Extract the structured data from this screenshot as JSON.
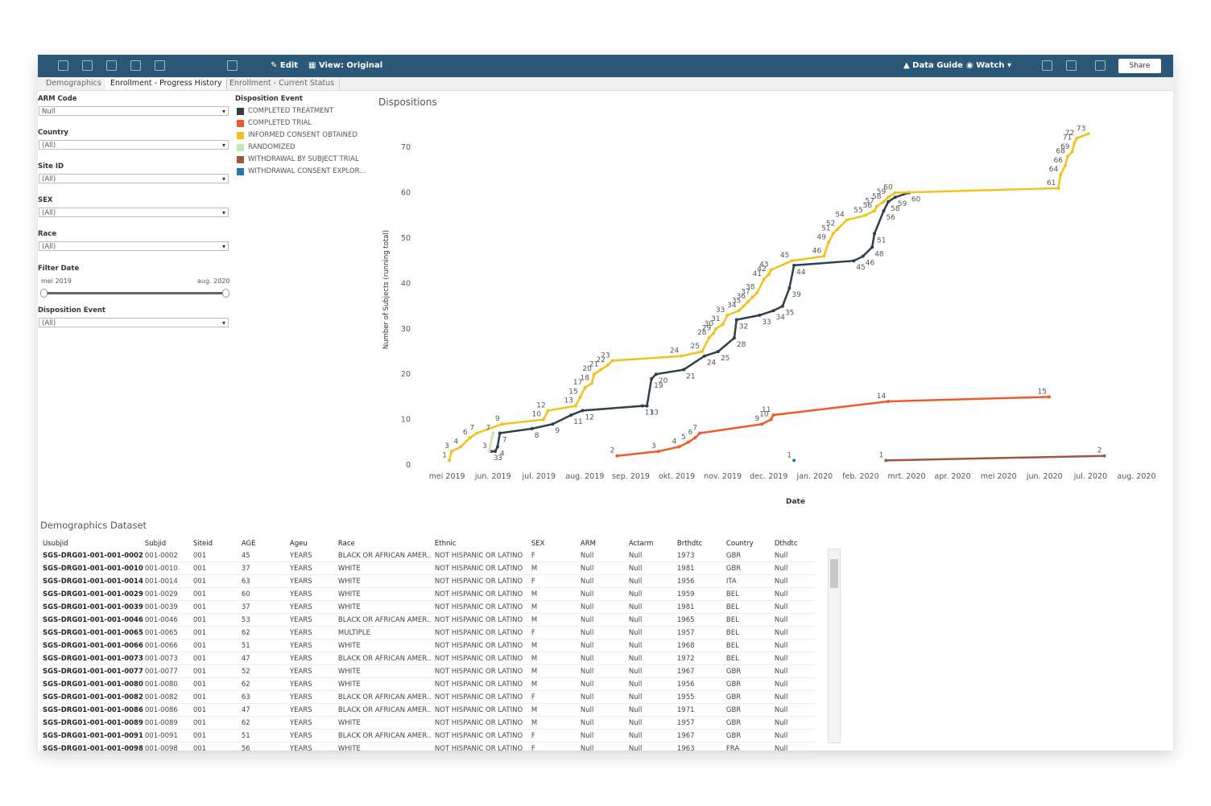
{
  "toolbar": {
    "buttons": [
      "Edit",
      "View: Original",
      "Data Guide",
      "Watch",
      "Share"
    ]
  },
  "tabs": [
    "Demographics",
    "Enrollment - Progress History",
    "Enrollment - Current Status"
  ],
  "filters": [
    {
      "label": "ARM Code",
      "value": "Null"
    },
    {
      "label": "Country",
      "value": "(All)"
    },
    {
      "label": "Site ID",
      "value": "(All)"
    },
    {
      "label": "SEX",
      "value": "(All)"
    },
    {
      "label": "Race",
      "value": "(All)"
    }
  ],
  "date_filter": {
    "label": "Filter Date",
    "start": "mei 2019",
    "end": "aug. 2020"
  },
  "event_filter": {
    "label": "Disposition Event",
    "value": "(All)"
  },
  "chart_data": {
    "type": "line",
    "title": "Dispositions",
    "legend_title": "Disposition Event",
    "x_label": "Date",
    "y_label": "Number of Subjects (running total)",
    "xlim": [
      -0.44,
      15.5
    ],
    "ylim": [
      0,
      75
    ],
    "xticks": [
      {
        "value": 0,
        "label": "mei 2019"
      },
      {
        "value": 1,
        "label": "jun. 2019"
      },
      {
        "value": 2,
        "label": "jul. 2019"
      },
      {
        "value": 3,
        "label": "aug. 2019"
      },
      {
        "value": 4,
        "label": "sep. 2019"
      },
      {
        "value": 5,
        "label": "okt. 2019"
      },
      {
        "value": 6,
        "label": "nov. 2019"
      },
      {
        "value": 7,
        "label": "dec. 2019"
      },
      {
        "value": 8,
        "label": "jan. 2020"
      },
      {
        "value": 9,
        "label": "feb. 2020"
      },
      {
        "value": 10,
        "label": "mrt. 2020"
      },
      {
        "value": 11,
        "label": "apr. 2020"
      },
      {
        "value": 12,
        "label": "mei 2020"
      },
      {
        "value": 13,
        "label": "jun. 2020"
      },
      {
        "value": 14,
        "label": "jul. 2020"
      },
      {
        "value": 15,
        "label": "aug. 2020"
      }
    ],
    "yticks": [
      0,
      10,
      20,
      30,
      40,
      50,
      60,
      70
    ],
    "series": [
      {
        "name": "COMPLETED TREATMENT",
        "color": "#2e4049",
        "x": [
          0.96,
          1.05,
          1.1,
          1.15,
          1.85,
          2.3,
          2.7,
          2.95,
          4.25,
          4.35,
          4.45,
          4.55,
          5.15,
          5.6,
          5.9,
          6.25,
          6.3,
          6.8,
          7.1,
          7.3,
          7.45,
          7.55,
          8.85,
          9.05,
          9.25,
          9.3,
          9.5,
          9.6,
          9.75,
          10.05
        ],
        "values": [
          3,
          3,
          4,
          7,
          8,
          9,
          11,
          12,
          13,
          13,
          19,
          20,
          21,
          24,
          25,
          28,
          32,
          33,
          34,
          35,
          39,
          44,
          45,
          46,
          48,
          51,
          56,
          58,
          59,
          60
        ]
      },
      {
        "name": "COMPLETED TRIAL",
        "color": "#ef5a2a",
        "x": [
          3.7,
          4.6,
          5.05,
          5.25,
          5.4,
          5.5,
          6.85,
          7.05,
          7.1,
          9.6,
          13.1
        ],
        "values": [
          2,
          3,
          4,
          5,
          6,
          7,
          9,
          10,
          11,
          14,
          15
        ]
      },
      {
        "name": "INFORMED CONSENT OBTAINED",
        "color": "#f1c21b",
        "x": [
          0.05,
          0.1,
          0.3,
          0.5,
          0.65,
          1.2,
          2.1,
          2.2,
          2.8,
          2.9,
          3.0,
          3.15,
          3.2,
          3.35,
          3.5,
          3.6,
          5.1,
          5.55,
          5.7,
          5.8,
          5.85,
          6.0,
          6.1,
          6.35,
          6.45,
          6.55,
          6.65,
          6.75,
          6.9,
          7.0,
          7.05,
          7.5,
          8.2,
          8.3,
          8.4,
          8.5,
          8.7,
          9.1,
          9.3,
          9.35,
          9.5,
          9.6,
          9.75,
          13.3,
          13.35,
          13.45,
          13.5,
          13.6,
          13.65,
          13.7,
          13.95
        ],
        "values": [
          1,
          3,
          4,
          6,
          7,
          9,
          10,
          12,
          13,
          15,
          17,
          18,
          20,
          21,
          22,
          23,
          24,
          25,
          28,
          29,
          30,
          31,
          33,
          34,
          35,
          36,
          37,
          38,
          41,
          42,
          43,
          45,
          46,
          49,
          51,
          52,
          54,
          55,
          56,
          57,
          58,
          59,
          60,
          61,
          64,
          66,
          68,
          69,
          71,
          72,
          73
        ]
      },
      {
        "name": "RANDOMIZED",
        "color": "#c5e6a6",
        "x": [
          0.92,
          1.0
        ],
        "values": [
          3,
          7
        ]
      },
      {
        "name": "WITHDRAWAL BY SUBJECT TRIAL",
        "color": "#9b5743",
        "x": [
          9.55,
          14.3
        ],
        "values": [
          1,
          2
        ]
      },
      {
        "name": "WITHDRAWAL CONSENT EXPLOR...",
        "color": "#1f77b4",
        "x": [
          7.55
        ],
        "values": [
          1
        ]
      }
    ]
  },
  "table": {
    "title": "Demographics Dataset",
    "columns": [
      "Usubjid",
      "Subjid",
      "Siteid",
      "AGE",
      "Ageu",
      "Race",
      "Ethnic",
      "SEX",
      "ARM",
      "Actarm",
      "Brthdtc",
      "Country",
      "Dthdtc"
    ],
    "rows": [
      [
        "SGS-DRG01-001-001-0002",
        "001-0002",
        "001",
        45,
        "YEARS",
        "BLACK OR AFRICAN AMER..",
        "NOT HISPANIC OR LATINO",
        "F",
        "Null",
        "Null",
        1973,
        "GBR",
        "Null"
      ],
      [
        "SGS-DRG01-001-001-0010",
        "001-0010",
        "001",
        37,
        "YEARS",
        "WHITE",
        "NOT HISPANIC OR LATINO",
        "M",
        "Null",
        "Null",
        1981,
        "GBR",
        "Null"
      ],
      [
        "SGS-DRG01-001-001-0014",
        "001-0014",
        "001",
        63,
        "YEARS",
        "WHITE",
        "NOT HISPANIC OR LATINO",
        "F",
        "Null",
        "Null",
        1956,
        "ITA",
        "Null"
      ],
      [
        "SGS-DRG01-001-001-0029",
        "001-0029",
        "001",
        60,
        "YEARS",
        "WHITE",
        "NOT HISPANIC OR LATINO",
        "M",
        "Null",
        "Null",
        1959,
        "BEL",
        "Null"
      ],
      [
        "SGS-DRG01-001-001-0039",
        "001-0039",
        "001",
        37,
        "YEARS",
        "WHITE",
        "NOT HISPANIC OR LATINO",
        "M",
        "Null",
        "Null",
        1981,
        "BEL",
        "Null"
      ],
      [
        "SGS-DRG01-001-001-0046",
        "001-0046",
        "001",
        53,
        "YEARS",
        "BLACK OR AFRICAN AMER..",
        "NOT HISPANIC OR LATINO",
        "M",
        "Null",
        "Null",
        1965,
        "BEL",
        "Null"
      ],
      [
        "SGS-DRG01-001-001-0065",
        "001-0065",
        "001",
        62,
        "YEARS",
        "MULTIPLE",
        "NOT HISPANIC OR LATINO",
        "F",
        "Null",
        "Null",
        1957,
        "BEL",
        "Null"
      ],
      [
        "SGS-DRG01-001-001-0066",
        "001-0066",
        "001",
        51,
        "YEARS",
        "WHITE",
        "NOT HISPANIC OR LATINO",
        "M",
        "Null",
        "Null",
        1968,
        "BEL",
        "Null"
      ],
      [
        "SGS-DRG01-001-001-0073",
        "001-0073",
        "001",
        47,
        "YEARS",
        "BLACK OR AFRICAN AMER..",
        "NOT HISPANIC OR LATINO",
        "M",
        "Null",
        "Null",
        1972,
        "BEL",
        "Null"
      ],
      [
        "SGS-DRG01-001-001-0077",
        "001-0077",
        "001",
        52,
        "YEARS",
        "WHITE",
        "NOT HISPANIC OR LATINO",
        "M",
        "Null",
        "Null",
        1967,
        "GBR",
        "Null"
      ],
      [
        "SGS-DRG01-001-001-0080",
        "001-0080",
        "001",
        62,
        "YEARS",
        "WHITE",
        "NOT HISPANIC OR LATINO",
        "M",
        "Null",
        "Null",
        1956,
        "GBR",
        "Null"
      ],
      [
        "SGS-DRG01-001-001-0082",
        "001-0082",
        "001",
        63,
        "YEARS",
        "BLACK OR AFRICAN AMER..",
        "NOT HISPANIC OR LATINO",
        "F",
        "Null",
        "Null",
        1955,
        "GBR",
        "Null"
      ],
      [
        "SGS-DRG01-001-001-0086",
        "001-0086",
        "001",
        47,
        "YEARS",
        "BLACK OR AFRICAN AMER..",
        "NOT HISPANIC OR LATINO",
        "M",
        "Null",
        "Null",
        1971,
        "GBR",
        "Null"
      ],
      [
        "SGS-DRG01-001-001-0089",
        "001-0089",
        "001",
        62,
        "YEARS",
        "WHITE",
        "NOT HISPANIC OR LATINO",
        "M",
        "Null",
        "Null",
        1957,
        "GBR",
        "Null"
      ],
      [
        "SGS-DRG01-001-001-0091",
        "001-0091",
        "001",
        51,
        "YEARS",
        "BLACK OR AFRICAN AMER..",
        "NOT HISPANIC OR LATINO",
        "F",
        "Null",
        "Null",
        1967,
        "GBR",
        "Null"
      ],
      [
        "SGS-DRG01-001-001-0098",
        "001-0098",
        "001",
        56,
        "YEARS",
        "WHITE",
        "NOT HISPANIC OR LATINO",
        "F",
        "Null",
        "Null",
        1963,
        "FRA",
        "Null"
      ]
    ]
  }
}
